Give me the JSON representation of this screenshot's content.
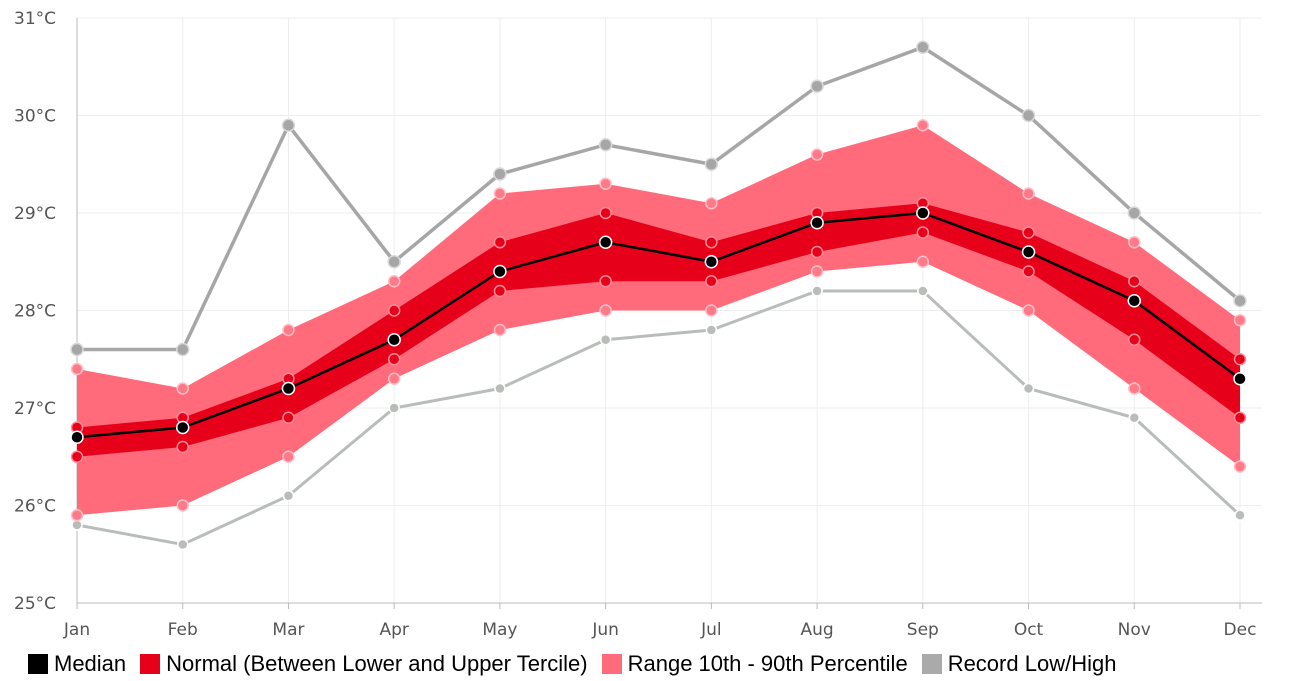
{
  "chart_data": {
    "type": "area",
    "categories": [
      "Jan",
      "Feb",
      "Mar",
      "Apr",
      "May",
      "Jun",
      "Jul",
      "Aug",
      "Sep",
      "Oct",
      "Nov",
      "Dec"
    ],
    "y_ticks": [
      "25°C",
      "26°C",
      "27°C",
      "28°C",
      "29°C",
      "30°C",
      "31°C"
    ],
    "ylim": [
      25,
      31
    ],
    "grid": true,
    "legend_position": "bottom",
    "series": [
      {
        "name": "Median",
        "color": "#000000",
        "values": [
          26.7,
          26.8,
          27.2,
          27.7,
          28.4,
          28.7,
          28.5,
          28.9,
          29.0,
          28.6,
          28.1,
          27.3
        ]
      },
      {
        "name": "Normal (Between Lower and Upper Tercile)",
        "color": "#e6001a",
        "lower": [
          26.5,
          26.6,
          26.9,
          27.5,
          28.2,
          28.3,
          28.3,
          28.6,
          28.8,
          28.4,
          27.7,
          26.9
        ],
        "upper": [
          26.8,
          26.9,
          27.3,
          28.0,
          28.7,
          29.0,
          28.7,
          29.0,
          29.1,
          28.8,
          28.3,
          27.5
        ]
      },
      {
        "name": "Range 10th - 90th Percentile",
        "color": "#ff6b7a",
        "lower": [
          25.9,
          26.0,
          26.5,
          27.3,
          27.8,
          28.0,
          28.0,
          28.4,
          28.5,
          28.0,
          27.2,
          26.4
        ],
        "upper": [
          27.4,
          27.2,
          27.8,
          28.3,
          29.2,
          29.3,
          29.1,
          29.6,
          29.9,
          29.2,
          28.7,
          27.9
        ]
      },
      {
        "name": "Record Low/High",
        "color": "#aaaaaa",
        "lower": [
          25.8,
          25.6,
          26.1,
          27.0,
          27.2,
          27.7,
          27.8,
          28.2,
          28.2,
          27.2,
          26.9,
          25.9
        ],
        "upper": [
          27.6,
          27.6,
          29.9,
          28.5,
          29.4,
          29.7,
          29.5,
          30.3,
          30.7,
          30.0,
          29.0,
          28.1
        ]
      }
    ]
  },
  "legend": [
    {
      "label": "Median",
      "color": "#000000"
    },
    {
      "label": "Normal (Between Lower and Upper Tercile)",
      "color": "#e6001a"
    },
    {
      "label": "Range 10th - 90th Percentile",
      "color": "#ff6b7a"
    },
    {
      "label": "Record Low/High",
      "color": "#aaaaaa"
    }
  ]
}
